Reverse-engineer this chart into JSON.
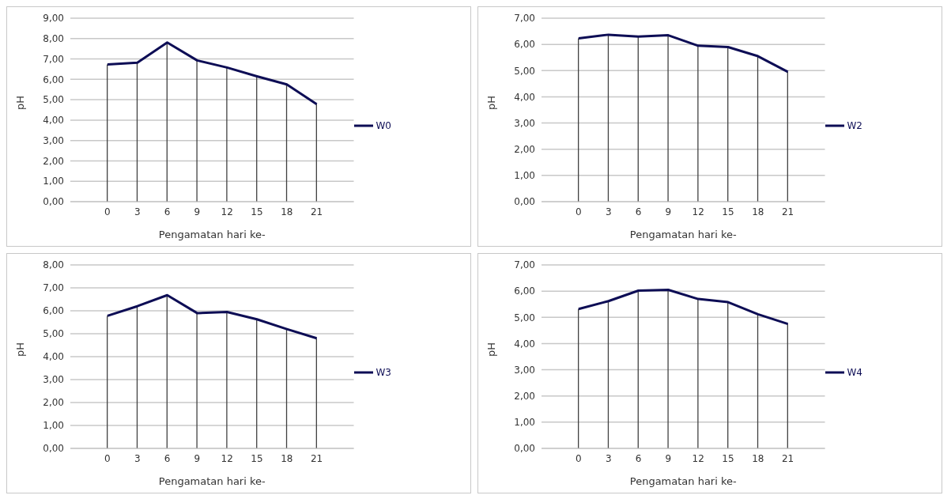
{
  "chart_data": [
    {
      "type": "line",
      "xlabel": "Pengamatan hari ke-",
      "ylabel": "pH",
      "categories": [
        "0",
        "3",
        "6",
        "9",
        "12",
        "15",
        "18",
        "21"
      ],
      "series": [
        {
          "name": "W0",
          "color": "#0d0d55",
          "values": [
            6.73,
            6.82,
            7.81,
            6.93,
            6.58,
            6.15,
            5.75,
            4.78
          ]
        },
        {
          "type": "bar",
          "color": "#404040",
          "values": [
            6.73,
            6.82,
            7.81,
            6.93,
            6.58,
            6.15,
            5.75,
            4.78
          ]
        }
      ],
      "ylim": [
        0,
        9
      ],
      "yticks": [
        {
          "value": 0,
          "label": "0,00"
        },
        {
          "value": 1,
          "label": "1,00"
        },
        {
          "value": 2,
          "label": "2,00"
        },
        {
          "value": 3,
          "label": "3,00"
        },
        {
          "value": 4,
          "label": "4,00"
        },
        {
          "value": 5,
          "label": "5,00"
        },
        {
          "value": 6,
          "label": "6,00"
        },
        {
          "value": 7,
          "label": "7,00"
        },
        {
          "value": 8,
          "label": "8,00"
        },
        {
          "value": 9,
          "label": "9,00"
        }
      ],
      "grid": "y",
      "legend": "right"
    },
    {
      "type": "line",
      "xlabel": "Pengamatan hari ke-",
      "ylabel": "pH",
      "categories": [
        "0",
        "3",
        "6",
        "9",
        "12",
        "15",
        "18",
        "21"
      ],
      "series": [
        {
          "name": "W2",
          "color": "#0d0d55",
          "values": [
            6.23,
            6.37,
            6.3,
            6.35,
            5.95,
            5.9,
            5.55,
            4.95
          ]
        },
        {
          "type": "bar",
          "color": "#404040",
          "values": [
            6.23,
            6.37,
            6.3,
            6.35,
            5.95,
            5.9,
            5.55,
            4.95
          ]
        }
      ],
      "ylim": [
        0,
        7
      ],
      "yticks": [
        {
          "value": 0,
          "label": "0,00"
        },
        {
          "value": 1,
          "label": "1,00"
        },
        {
          "value": 2,
          "label": "2,00"
        },
        {
          "value": 3,
          "label": "3,00"
        },
        {
          "value": 4,
          "label": "4,00"
        },
        {
          "value": 5,
          "label": "5,00"
        },
        {
          "value": 6,
          "label": "6,00"
        },
        {
          "value": 7,
          "label": "7,00"
        }
      ],
      "grid": "y",
      "legend": "right"
    },
    {
      "type": "line",
      "xlabel": "Pengamatan hari ke-",
      "ylabel": "pH",
      "categories": [
        "0",
        "3",
        "6",
        "9",
        "12",
        "15",
        "18",
        "21"
      ],
      "series": [
        {
          "name": "W3",
          "color": "#0d0d55",
          "values": [
            5.78,
            6.2,
            6.68,
            5.9,
            5.95,
            5.63,
            5.2,
            4.8
          ]
        },
        {
          "type": "bar",
          "color": "#404040",
          "values": [
            5.78,
            6.2,
            6.68,
            5.9,
            5.95,
            5.63,
            5.2,
            4.8
          ]
        }
      ],
      "ylim": [
        0,
        8
      ],
      "yticks": [
        {
          "value": 0,
          "label": "0,00"
        },
        {
          "value": 1,
          "label": "1,00"
        },
        {
          "value": 2,
          "label": "2,00"
        },
        {
          "value": 3,
          "label": "3,00"
        },
        {
          "value": 4,
          "label": "4,00"
        },
        {
          "value": 5,
          "label": "5,00"
        },
        {
          "value": 6,
          "label": "6,00"
        },
        {
          "value": 7,
          "label": "7,00"
        },
        {
          "value": 8,
          "label": "8,00"
        }
      ],
      "grid": "y",
      "legend": "right"
    },
    {
      "type": "line",
      "xlabel": "Pengamatan hari ke-",
      "ylabel": "pH",
      "categories": [
        "0",
        "3",
        "6",
        "9",
        "12",
        "15",
        "18",
        "21"
      ],
      "series": [
        {
          "name": "W4",
          "color": "#0d0d55",
          "values": [
            5.32,
            5.62,
            6.02,
            6.05,
            5.7,
            5.58,
            5.12,
            4.75
          ]
        },
        {
          "type": "bar",
          "color": "#404040",
          "values": [
            5.32,
            5.62,
            6.02,
            6.05,
            5.7,
            5.58,
            5.12,
            4.75
          ]
        }
      ],
      "ylim": [
        0,
        7
      ],
      "yticks": [
        {
          "value": 0,
          "label": "0,00"
        },
        {
          "value": 1,
          "label": "1,00"
        },
        {
          "value": 2,
          "label": "2,00"
        },
        {
          "value": 3,
          "label": "3,00"
        },
        {
          "value": 4,
          "label": "4,00"
        },
        {
          "value": 5,
          "label": "5,00"
        },
        {
          "value": 6,
          "label": "6,00"
        },
        {
          "value": 7,
          "label": "7,00"
        }
      ],
      "grid": "y",
      "legend": "right"
    }
  ]
}
